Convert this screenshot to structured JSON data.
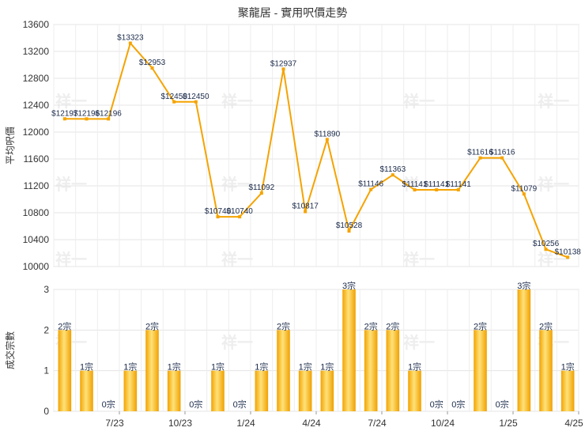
{
  "chart_data": [
    {
      "type": "line",
      "title": "聚龍居 - 實用呎價走勢",
      "ylabel": "平均呎價",
      "ylim": [
        10000,
        13600
      ],
      "yticks": [
        10000,
        10400,
        10800,
        11200,
        11600,
        12000,
        12400,
        12800,
        13200,
        13600
      ],
      "grid": true,
      "color": "#f5a300",
      "values": [
        12197,
        12196,
        12196,
        13323,
        12953,
        12450,
        12450,
        10740,
        10740,
        11092,
        12937,
        10817,
        11890,
        10528,
        11146,
        11363,
        11141,
        11141,
        11141,
        11616,
        11616,
        11079,
        10256,
        10138
      ],
      "labels": [
        "$12197",
        "$12196",
        "$12196",
        "$13323",
        "$12953",
        "$12450",
        "$12450",
        "$10740",
        "$10740",
        "$11092",
        "$12937",
        "$10817",
        "$11890",
        "$10528",
        "$11146",
        "$11363",
        "$11141",
        "$11141",
        "$11141",
        "$11616",
        "$11616",
        "$11079",
        "$10256",
        "$10138"
      ]
    },
    {
      "type": "bar",
      "ylabel": "成交宗數",
      "ylim": [
        0,
        3
      ],
      "yticks": [
        0,
        1,
        2,
        3
      ],
      "grid": true,
      "color": "#f5a300",
      "values": [
        2,
        1,
        0,
        1,
        2,
        1,
        0,
        1,
        0,
        1,
        2,
        1,
        1,
        3,
        2,
        2,
        1,
        0,
        0,
        2,
        0,
        3,
        2,
        1
      ],
      "labels": [
        "2宗",
        "1宗",
        "0宗",
        "1宗",
        "2宗",
        "1宗",
        "0宗",
        "1宗",
        "0宗",
        "1宗",
        "2宗",
        "1宗",
        "1宗",
        "3宗",
        "2宗",
        "2宗",
        "1宗",
        "0宗",
        "0宗",
        "2宗",
        "0宗",
        "3宗",
        "2宗",
        "1宗"
      ],
      "xticks": [
        "7/23",
        "10/23",
        "1/24",
        "4/24",
        "7/24",
        "10/24",
        "1/25",
        "4/25"
      ]
    }
  ],
  "watermark": "祥一"
}
